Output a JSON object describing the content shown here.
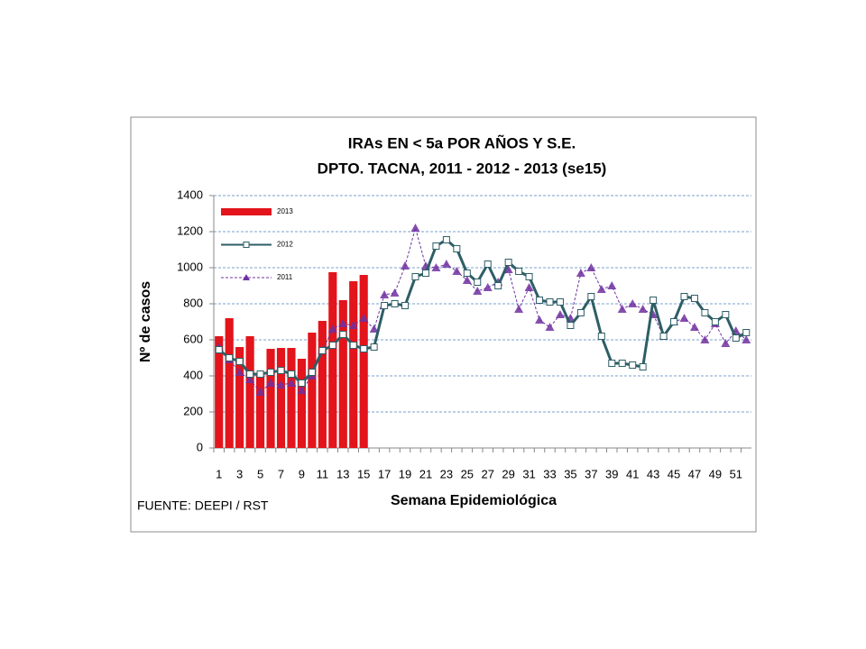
{
  "chart_data": {
    "type": "combo",
    "title": "IRAs  EN < 5a POR AÑOS Y S.E.",
    "subtitle": "DPTO. TACNA, 2011 - 2012 -  2013  (se15)",
    "x_label": "Semana Epidemiológica",
    "y_label": "Nº de casos",
    "source": "FUENTE: DEEPI / RST",
    "categories": [
      1,
      null,
      3,
      null,
      5,
      null,
      7,
      null,
      9,
      null,
      11,
      null,
      13,
      null,
      15,
      null,
      17,
      null,
      19,
      null,
      21,
      null,
      23,
      null,
      25,
      null,
      27,
      null,
      29,
      null,
      31,
      null,
      33,
      null,
      35,
      null,
      37,
      null,
      39,
      null,
      41,
      null,
      43,
      null,
      45,
      null,
      47,
      null,
      49,
      null,
      51,
      null
    ],
    "ylim": [
      0,
      1400
    ],
    "yticks": [
      0,
      200,
      400,
      600,
      800,
      1000,
      1200,
      1400
    ],
    "grid": true,
    "legend": "upper left",
    "series": [
      {
        "name": "2013",
        "type": "bar",
        "color": "#e3141b",
        "values": [
          620,
          720,
          560,
          620,
          400,
          550,
          555,
          555,
          495,
          640,
          705,
          975,
          820,
          925,
          960,
          null,
          null,
          null,
          null,
          null,
          null,
          null,
          null,
          null,
          null,
          null,
          null,
          null,
          null,
          null,
          null,
          null,
          null,
          null,
          null,
          null,
          null,
          null,
          null,
          null,
          null,
          null,
          null,
          null,
          null,
          null,
          null,
          null,
          null,
          null,
          null,
          null
        ]
      },
      {
        "name": "2012",
        "type": "line",
        "color": "#2e5e66",
        "values": [
          545,
          500,
          480,
          410,
          410,
          420,
          430,
          410,
          360,
          420,
          540,
          570,
          630,
          570,
          550,
          560,
          790,
          800,
          790,
          950,
          970,
          1120,
          1155,
          1105,
          970,
          920,
          1020,
          900,
          1030,
          980,
          950,
          820,
          810,
          810,
          680,
          750,
          840,
          620,
          470,
          470,
          460,
          450,
          820,
          620,
          700,
          840,
          830,
          750,
          700,
          740,
          610,
          640
        ]
      },
      {
        "name": "2011",
        "type": "line-dashed",
        "color": "#7030a0",
        "values": [
          560,
          490,
          420,
          380,
          310,
          360,
          350,
          360,
          320,
          400,
          540,
          660,
          690,
          680,
          720,
          660,
          850,
          860,
          1010,
          1220,
          1010,
          1000,
          1020,
          980,
          930,
          870,
          890,
          920,
          990,
          770,
          890,
          710,
          670,
          740,
          720,
          970,
          1000,
          880,
          900,
          770,
          800,
          770,
          740,
          620,
          700,
          720,
          670,
          600,
          690,
          580,
          650,
          600
        ]
      }
    ]
  }
}
